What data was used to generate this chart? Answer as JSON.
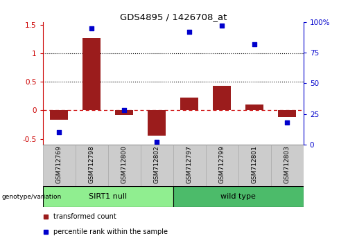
{
  "title": "GDS4895 / 1426708_at",
  "samples": [
    "GSM712769",
    "GSM712798",
    "GSM712800",
    "GSM712802",
    "GSM712797",
    "GSM712799",
    "GSM712801",
    "GSM712803"
  ],
  "bar_values": [
    -0.17,
    1.27,
    -0.08,
    -0.44,
    0.22,
    0.43,
    0.1,
    -0.12
  ],
  "percentile_values": [
    10,
    95,
    28,
    2,
    92,
    97,
    82,
    18
  ],
  "group1_label": "SIRT1 null",
  "group1_indices": [
    0,
    1,
    2,
    3
  ],
  "group2_label": "wild type",
  "group2_indices": [
    4,
    5,
    6,
    7
  ],
  "group_label": "genotype/variation",
  "bar_color": "#9B1C1C",
  "dot_color": "#0000CC",
  "group1_color": "#90EE90",
  "group2_color": "#4CBB6A",
  "ylim_left": [
    -0.6,
    1.55
  ],
  "ylim_right": [
    0,
    100
  ],
  "yticks_left": [
    -0.5,
    0.0,
    0.5,
    1.0,
    1.5
  ],
  "ytick_labels_left": [
    "-0.5",
    "0",
    "0.5",
    "1",
    "1.5"
  ],
  "ytick_labels_right": [
    "0",
    "25",
    "50",
    "75",
    "100%"
  ],
  "dotted_lines": [
    0.5,
    1.0
  ],
  "dashed_zero_color": "#CC0000",
  "legend_tc": "transformed count",
  "legend_pr": "percentile rank within the sample",
  "tick_color_left": "#CC0000",
  "tick_color_right": "#0000CC",
  "gray_box_color": "#cccccc",
  "gray_box_edge": "#aaaaaa"
}
